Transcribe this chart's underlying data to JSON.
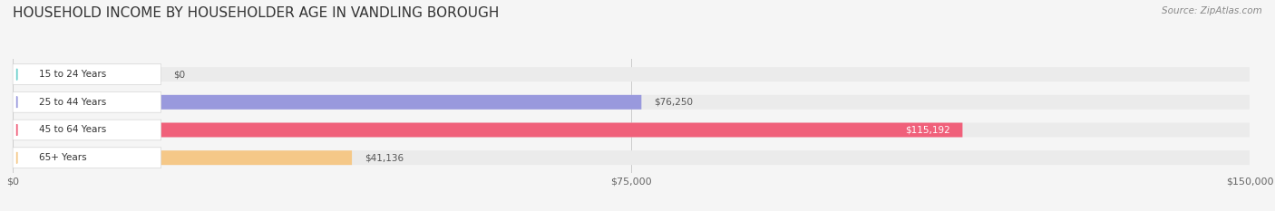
{
  "title": "HOUSEHOLD INCOME BY HOUSEHOLDER AGE IN VANDLING BOROUGH",
  "source": "Source: ZipAtlas.com",
  "categories": [
    "15 to 24 Years",
    "25 to 44 Years",
    "45 to 64 Years",
    "65+ Years"
  ],
  "values": [
    0,
    76250,
    115192,
    41136
  ],
  "bar_colors": [
    "#6dd0cc",
    "#9999dd",
    "#f0607a",
    "#f5c888"
  ],
  "value_labels": [
    "$0",
    "$76,250",
    "$115,192",
    "$41,136"
  ],
  "bar_bg_color": "#ebebeb",
  "xlim": [
    0,
    150000
  ],
  "xticks": [
    0,
    75000,
    150000
  ],
  "xtick_labels": [
    "$0",
    "$75,000",
    "$150,000"
  ],
  "background_color": "#f5f5f5",
  "title_fontsize": 11,
  "bar_height": 0.52,
  "figsize": [
    14.06,
    2.33
  ]
}
